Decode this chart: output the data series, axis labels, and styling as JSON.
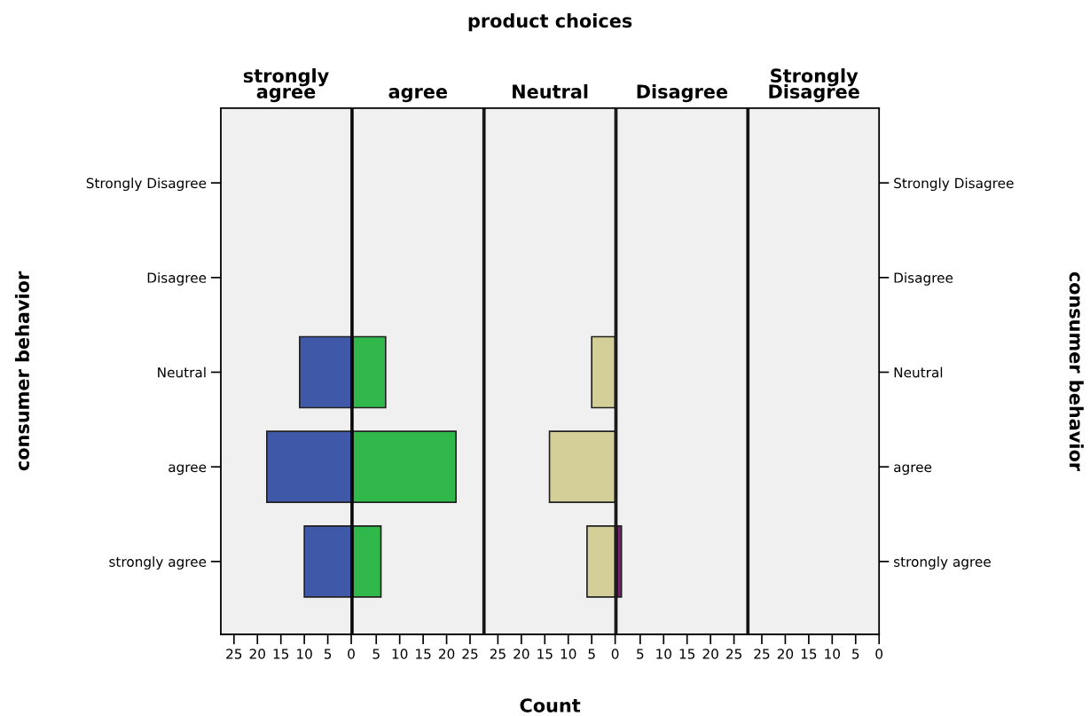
{
  "chart_data": [
    {
      "type": "bar",
      "orientation": "horizontal",
      "title": "strongly\nagree",
      "ylabel": "consumer behavior",
      "categories": [
        "Strongly Disagree",
        "Disagree",
        "Neutral",
        "agree",
        "strongly agree"
      ],
      "series": [
        {
          "color": "#3f58a8",
          "values": [
            null,
            null,
            11,
            18,
            10
          ]
        }
      ],
      "xlim": [
        27.8,
        0
      ],
      "xticks": [
        25,
        20,
        15,
        10,
        5,
        0
      ],
      "grid": false,
      "legend": false
    },
    {
      "type": "bar",
      "orientation": "horizontal",
      "title": "agree",
      "categories": [
        null,
        null,
        null,
        null,
        null
      ],
      "series": [
        {
          "color": "#30b84a",
          "values": [
            null,
            null,
            7,
            22,
            6
          ]
        }
      ],
      "xlim": [
        0,
        27.8
      ],
      "xticks": [
        5,
        10,
        15,
        20,
        25
      ],
      "tick_labels": "x",
      "grid": false,
      "legend": false
    },
    {
      "type": "bar",
      "orientation": "horizontal",
      "title": "Neutral",
      "xlabel": "Count",
      "annotations": [
        "product choices"
      ],
      "categories": [
        null,
        null,
        null,
        null,
        null
      ],
      "series": [
        {
          "color": "#d4cf98",
          "values": [
            null,
            null,
            5,
            14,
            6
          ]
        }
      ],
      "xlim": [
        27.8,
        0
      ],
      "xticks": [
        25,
        20,
        15,
        10,
        5,
        0
      ],
      "tick_labels": "x",
      "grid": false,
      "legend": false
    },
    {
      "type": "bar",
      "orientation": "horizontal",
      "title": "Disagree",
      "categories": [
        null,
        null,
        null,
        null,
        null
      ],
      "series": [
        {
          "color": "#7a1f70",
          "values": [
            null,
            null,
            null,
            null,
            1
          ]
        }
      ],
      "xlim": [
        0,
        27.8
      ],
      "xticks": [
        5,
        10,
        15,
        20,
        25
      ],
      "tick_labels": "x",
      "grid": false,
      "legend": false
    },
    {
      "type": "bar",
      "orientation": "horizontal",
      "title": "Strongly\nDisagree",
      "ylabel": "consumer behavior",
      "categories": [
        "Strongly Disagree",
        "Disagree",
        "Neutral",
        "agree",
        "strongly agree"
      ],
      "series": [
        {
          "values": [
            null,
            null,
            null,
            null,
            null
          ]
        }
      ],
      "xlim": [
        27.8,
        0
      ],
      "xticks": [
        25,
        20,
        15,
        10,
        5,
        0
      ],
      "grid": false,
      "legend": false
    }
  ]
}
